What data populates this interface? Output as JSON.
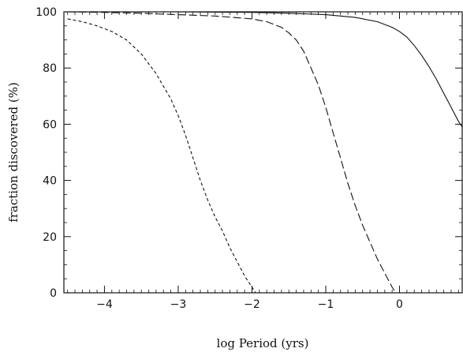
{
  "chart_data": {
    "type": "line",
    "title": "",
    "xlabel": "log Period (yrs)",
    "ylabel": "fraction discovered (%)",
    "xlim": [
      -4.55,
      0.85
    ],
    "ylim": [
      0,
      100
    ],
    "x_ticks": [
      -4,
      -3,
      -2,
      -1,
      0
    ],
    "x_tick_labels": [
      "−4",
      "−3",
      "−2",
      "−1",
      "0"
    ],
    "y_ticks": [
      0,
      20,
      40,
      60,
      80,
      100
    ],
    "y_tick_labels": [
      "0",
      "20",
      "40",
      "60",
      "80",
      "100"
    ],
    "grid": false,
    "legend": "none",
    "series": [
      {
        "style": "short-dash",
        "x": [
          -4.5,
          -4.3,
          -4.1,
          -3.9,
          -3.7,
          -3.5,
          -3.3,
          -3.1,
          -3.0,
          -2.9,
          -2.8,
          -2.7,
          -2.6,
          -2.5,
          -2.4,
          -2.3,
          -2.2,
          -2.1,
          -2.0,
          -1.95
        ],
        "y": [
          97.5,
          96.5,
          95,
          93,
          90,
          85,
          78,
          69,
          63,
          56,
          48,
          40,
          33,
          27,
          22,
          16,
          11,
          6,
          2,
          0
        ]
      },
      {
        "style": "long-dash",
        "x": [
          -4.5,
          -4.0,
          -3.5,
          -3.0,
          -2.5,
          -2.0,
          -1.8,
          -1.6,
          -1.5,
          -1.4,
          -1.3,
          -1.2,
          -1.1,
          -1.0,
          -0.9,
          -0.8,
          -0.7,
          -0.6,
          -0.5,
          -0.4,
          -0.3,
          -0.2,
          -0.1,
          -0.05
        ],
        "y": [
          100,
          99.8,
          99.5,
          99,
          98.5,
          97.5,
          96.5,
          94.5,
          92.5,
          90,
          86,
          80,
          74,
          66,
          57,
          48,
          39,
          31,
          24,
          18,
          12,
          7,
          2,
          0
        ]
      },
      {
        "style": "solid",
        "x": [
          -4.5,
          -3.0,
          -2.0,
          -1.5,
          -1.0,
          -0.6,
          -0.3,
          -0.1,
          0.0,
          0.1,
          0.2,
          0.3,
          0.4,
          0.5,
          0.6,
          0.7,
          0.8,
          0.85
        ],
        "y": [
          100,
          100,
          99.8,
          99.5,
          99,
          98,
          96.5,
          94.5,
          93,
          91,
          88,
          84.5,
          80.5,
          76,
          71,
          66,
          61,
          59
        ]
      }
    ]
  }
}
